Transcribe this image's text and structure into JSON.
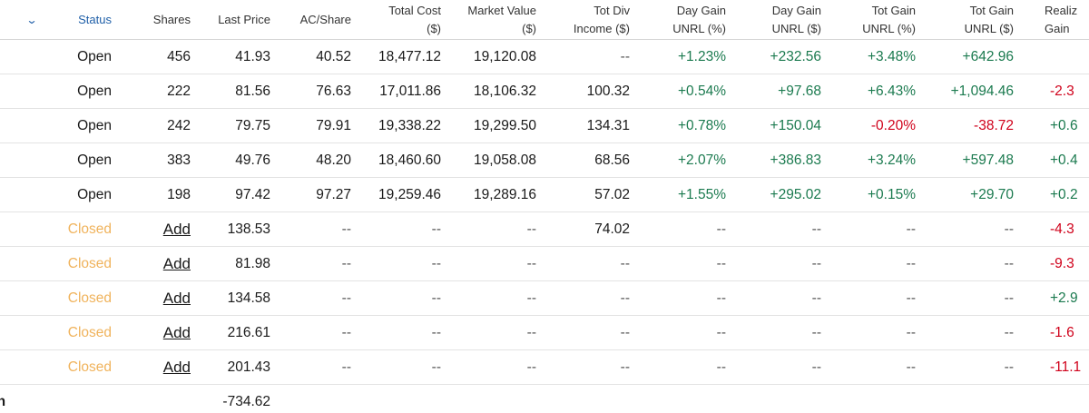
{
  "header": {
    "chevron_icon": "chevron-down-icon",
    "status": "Status",
    "shares": "Shares",
    "last_price": "Last Price",
    "ac_share": "AC/Share",
    "total_cost": [
      "Total Cost",
      "($)"
    ],
    "market_value": [
      "Market Value",
      "($)"
    ],
    "tot_div": [
      "Tot Div",
      "Income ($)"
    ],
    "day_gain_pct": [
      "Day Gain",
      "UNRL (%)"
    ],
    "day_gain_usd": [
      "Day Gain",
      "UNRL ($)"
    ],
    "tot_gain_pct": [
      "Tot Gain",
      "UNRL (%)"
    ],
    "tot_gain_usd": [
      "Tot Gain",
      "UNRL ($)"
    ],
    "realized": [
      "Realiz",
      "Gain"
    ]
  },
  "rows": [
    {
      "status": "Open",
      "shares": "456",
      "last_price": "41.93",
      "ac_share": "40.52",
      "total_cost": "18,477.12",
      "market_value": "19,120.08",
      "tot_div": "--",
      "day_gain_pct": "+1.23%",
      "day_gain_usd": "+232.56",
      "tot_gain_pct": "+3.48%",
      "tot_gain_usd": "+642.96",
      "realized": ""
    },
    {
      "status": "Open",
      "shares": "222",
      "last_price": "81.56",
      "ac_share": "76.63",
      "total_cost": "17,011.86",
      "market_value": "18,106.32",
      "tot_div": "100.32",
      "day_gain_pct": "+0.54%",
      "day_gain_usd": "+97.68",
      "tot_gain_pct": "+6.43%",
      "tot_gain_usd": "+1,094.46",
      "realized": "-2.3"
    },
    {
      "status": "Open",
      "shares": "242",
      "last_price": "79.75",
      "ac_share": "79.91",
      "total_cost": "19,338.22",
      "market_value": "19,299.50",
      "tot_div": "134.31",
      "day_gain_pct": "+0.78%",
      "day_gain_usd": "+150.04",
      "tot_gain_pct": "-0.20%",
      "tot_gain_usd": "-38.72",
      "realized": "+0.6"
    },
    {
      "status": "Open",
      "shares": "383",
      "last_price": "49.76",
      "ac_share": "48.20",
      "total_cost": "18,460.60",
      "market_value": "19,058.08",
      "tot_div": "68.56",
      "day_gain_pct": "+2.07%",
      "day_gain_usd": "+386.83",
      "tot_gain_pct": "+3.24%",
      "tot_gain_usd": "+597.48",
      "realized": "+0.4"
    },
    {
      "status": "Open",
      "shares": "198",
      "last_price": "97.42",
      "ac_share": "97.27",
      "total_cost": "19,259.46",
      "market_value": "19,289.16",
      "tot_div": "57.02",
      "day_gain_pct": "+1.55%",
      "day_gain_usd": "+295.02",
      "tot_gain_pct": "+0.15%",
      "tot_gain_usd": "+29.70",
      "realized": "+0.2"
    },
    {
      "status": "Closed",
      "shares": "Add",
      "last_price": "138.53",
      "ac_share": "--",
      "total_cost": "--",
      "market_value": "--",
      "tot_div": "74.02",
      "day_gain_pct": "--",
      "day_gain_usd": "--",
      "tot_gain_pct": "--",
      "tot_gain_usd": "--",
      "realized": "-4.3"
    },
    {
      "status": "Closed",
      "shares": "Add",
      "last_price": "81.98",
      "ac_share": "--",
      "total_cost": "--",
      "market_value": "--",
      "tot_div": "--",
      "day_gain_pct": "--",
      "day_gain_usd": "--",
      "tot_gain_pct": "--",
      "tot_gain_usd": "--",
      "realized": "-9.3"
    },
    {
      "status": "Closed",
      "shares": "Add",
      "last_price": "134.58",
      "ac_share": "--",
      "total_cost": "--",
      "market_value": "--",
      "tot_div": "--",
      "day_gain_pct": "--",
      "day_gain_usd": "--",
      "tot_gain_pct": "--",
      "tot_gain_usd": "--",
      "realized": "+2.9"
    },
    {
      "status": "Closed",
      "shares": "Add",
      "last_price": "216.61",
      "ac_share": "--",
      "total_cost": "--",
      "market_value": "--",
      "tot_div": "--",
      "day_gain_pct": "--",
      "day_gain_usd": "--",
      "tot_gain_pct": "--",
      "tot_gain_usd": "--",
      "realized": "-1.6"
    },
    {
      "status": "Closed",
      "shares": "Add",
      "last_price": "201.43",
      "ac_share": "--",
      "total_cost": "--",
      "market_value": "--",
      "tot_div": "--",
      "day_gain_pct": "--",
      "day_gain_usd": "--",
      "tot_gain_pct": "--",
      "tot_gain_usd": "--",
      "realized": "-11.1"
    }
  ],
  "cash_row": {
    "label": "sh",
    "last_price": "-734.62"
  },
  "colors": {
    "positive": "#1b7a4f",
    "negative": "#d0021b",
    "closed": "#f0b35c",
    "link_blue": "#1f5fa8"
  }
}
